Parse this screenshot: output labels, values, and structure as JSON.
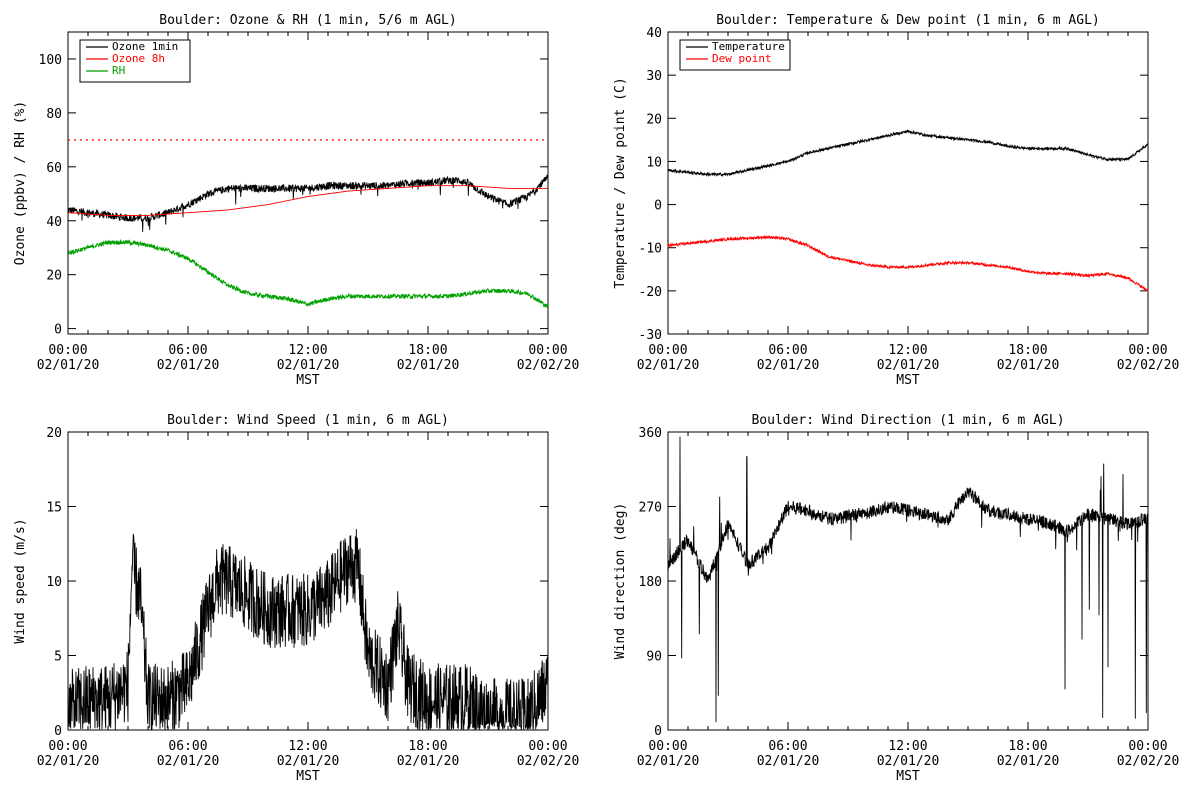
{
  "chart_data": [
    {
      "type": "line",
      "title": "Boulder: Ozone & RH (1 min, 5/6 m AGL)",
      "xlabel": "MST",
      "ylabel": "Ozone (ppbv) / RH (%)",
      "xlim": [
        0,
        24
      ],
      "ylim": [
        -2,
        110
      ],
      "yticks": [
        0,
        20,
        40,
        60,
        80,
        100
      ],
      "xticks": [
        {
          "time": "00:00",
          "date": "02/01/20"
        },
        {
          "time": "06:00",
          "date": "02/01/20"
        },
        {
          "time": "12:00",
          "date": "02/01/20"
        },
        {
          "time": "18:00",
          "date": "02/01/20"
        },
        {
          "time": "00:00",
          "date": "02/02/20"
        }
      ],
      "reference_line": {
        "y": 70,
        "style": "dotted",
        "color": "#ff0000"
      },
      "legend_position": "top-left",
      "series": [
        {
          "name": "Ozone 1min",
          "color": "#000000",
          "noise": 1.4,
          "spikes": true,
          "x": [
            0,
            1,
            2,
            3,
            4,
            5,
            6,
            7,
            8,
            9,
            10,
            11,
            12,
            13,
            14,
            15,
            16,
            17,
            18,
            19,
            19.5,
            20,
            21,
            22,
            23,
            24
          ],
          "y": [
            44,
            43,
            42,
            41,
            41,
            43,
            46,
            50,
            52,
            52,
            52,
            52,
            52,
            53,
            53,
            53,
            53,
            54,
            54,
            55,
            55,
            54,
            49,
            46,
            49,
            56
          ]
        },
        {
          "name": "Ozone 8h",
          "color": "#ff0000",
          "noise": 0,
          "x": [
            0,
            2,
            4,
            6,
            8,
            10,
            12,
            14,
            16,
            18,
            20,
            22,
            24
          ],
          "y": [
            43,
            42,
            42,
            43,
            44,
            46,
            49,
            51,
            52,
            53,
            53,
            52,
            52
          ]
        },
        {
          "name": "RH",
          "color": "#00a000",
          "noise": 0.8,
          "x": [
            0,
            1,
            2,
            3,
            4,
            5,
            6,
            7,
            8,
            9,
            10,
            11,
            12,
            13,
            14,
            15,
            16,
            17,
            18,
            19,
            20,
            21,
            22,
            23,
            24
          ],
          "y": [
            28,
            30,
            32,
            32,
            31,
            29,
            26,
            21,
            16,
            13,
            12,
            11,
            9,
            11,
            12,
            12,
            12,
            12,
            12,
            12,
            13,
            14,
            14,
            13,
            8
          ]
        }
      ]
    },
    {
      "type": "line",
      "title": "Boulder: Temperature & Dew point (1 min, 6 m AGL)",
      "xlabel": "MST",
      "ylabel": "Temperature / Dew point (C)",
      "xlim": [
        0,
        24
      ],
      "ylim": [
        -30,
        40
      ],
      "yticks": [
        -30,
        -20,
        -10,
        0,
        10,
        20,
        30,
        40
      ],
      "xticks": [
        {
          "time": "00:00",
          "date": "02/01/20"
        },
        {
          "time": "06:00",
          "date": "02/01/20"
        },
        {
          "time": "12:00",
          "date": "02/01/20"
        },
        {
          "time": "18:00",
          "date": "02/01/20"
        },
        {
          "time": "00:00",
          "date": "02/02/20"
        }
      ],
      "legend_position": "top-left",
      "series": [
        {
          "name": "Temperature",
          "color": "#000000",
          "noise": 0.3,
          "x": [
            0,
            1,
            2,
            3,
            4,
            5,
            6,
            7,
            8,
            9,
            10,
            11,
            12,
            13,
            14,
            15,
            16,
            17,
            18,
            19,
            20,
            21,
            22,
            23,
            24
          ],
          "y": [
            8,
            7.5,
            7,
            7,
            8,
            9,
            10,
            12,
            13,
            14,
            15,
            16,
            17,
            16,
            15.5,
            15,
            14.5,
            13.5,
            13,
            13,
            13,
            11.5,
            10.5,
            10.5,
            14
          ]
        },
        {
          "name": "Dew point",
          "color": "#ff0000",
          "noise": 0.3,
          "x": [
            0,
            1,
            2,
            3,
            4,
            5,
            6,
            7,
            8,
            9,
            10,
            11,
            12,
            13,
            14,
            15,
            16,
            17,
            18,
            19,
            20,
            21,
            22,
            23,
            24
          ],
          "y": [
            -9.5,
            -9,
            -8.5,
            -8,
            -7.8,
            -7.5,
            -8,
            -9.5,
            -12,
            -13,
            -14,
            -14.5,
            -14.5,
            -14,
            -13.5,
            -13.5,
            -14,
            -14.5,
            -15.5,
            -16,
            -16,
            -16.5,
            -16,
            -17,
            -20
          ]
        }
      ]
    },
    {
      "type": "line",
      "title": "Boulder: Wind Speed (1 min, 6 m AGL)",
      "xlabel": "MST",
      "ylabel": "Wind speed (m/s)",
      "xlim": [
        0,
        24
      ],
      "ylim": [
        0,
        20
      ],
      "yticks": [
        0,
        5,
        10,
        15,
        20
      ],
      "xticks": [
        {
          "time": "00:00",
          "date": "02/01/20"
        },
        {
          "time": "06:00",
          "date": "02/01/20"
        },
        {
          "time": "12:00",
          "date": "02/01/20"
        },
        {
          "time": "18:00",
          "date": "02/01/20"
        },
        {
          "time": "00:00",
          "date": "02/02/20"
        }
      ],
      "series": [
        {
          "color": "#000000",
          "noise": 2.5,
          "positive": true,
          "x": [
            0,
            1,
            2,
            3,
            3.2,
            3.6,
            4,
            5,
            6,
            7,
            7.5,
            8,
            9,
            10,
            11,
            12,
            13,
            14,
            14.5,
            15,
            16,
            16.5,
            17,
            18,
            19,
            20,
            21,
            22,
            23,
            24
          ],
          "y": [
            1.5,
            2,
            2,
            3,
            11,
            9,
            2,
            2,
            3,
            8,
            10,
            10,
            9,
            8,
            8,
            8,
            9,
            11,
            11,
            5,
            3,
            7,
            3,
            2,
            2,
            2,
            1,
            1,
            1,
            3
          ]
        }
      ]
    },
    {
      "type": "line",
      "title": "Boulder: Wind Direction (1 min, 6 m AGL)",
      "xlabel": "MST",
      "ylabel": "Wind direction (deg)",
      "xlim": [
        0,
        24
      ],
      "ylim": [
        0,
        360
      ],
      "yticks": [
        0,
        90,
        180,
        270,
        360
      ],
      "xticks": [
        {
          "time": "00:00",
          "date": "02/01/20"
        },
        {
          "time": "06:00",
          "date": "02/01/20"
        },
        {
          "time": "12:00",
          "date": "02/01/20"
        },
        {
          "time": "18:00",
          "date": "02/01/20"
        },
        {
          "time": "00:00",
          "date": "02/02/20"
        }
      ],
      "series": [
        {
          "color": "#000000",
          "noise": 8,
          "spikes": true,
          "x": [
            0,
            1,
            2,
            3,
            4,
            5,
            6,
            7,
            8,
            9,
            10,
            11,
            12,
            13,
            14,
            15,
            16,
            17,
            18,
            19,
            20,
            21,
            22,
            23,
            24
          ],
          "y": [
            200,
            230,
            180,
            250,
            200,
            220,
            270,
            265,
            255,
            258,
            262,
            270,
            265,
            260,
            255,
            290,
            265,
            260,
            255,
            250,
            240,
            260,
            255,
            250,
            255
          ]
        }
      ]
    }
  ]
}
